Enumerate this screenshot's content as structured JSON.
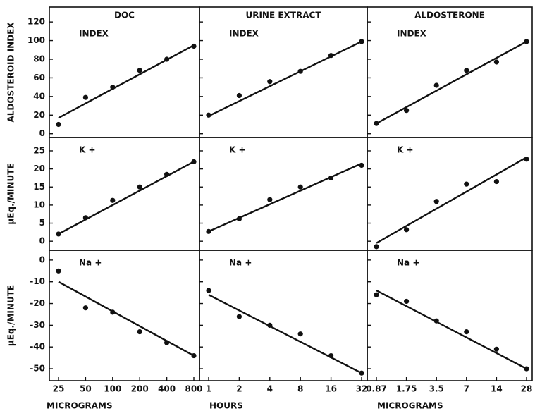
{
  "chart_data": [
    {
      "type": "scatter",
      "title": "DOC",
      "label": "INDEX",
      "y_label": "ALDOSTEROID INDEX",
      "ylim": [
        -4,
        136
      ],
      "yticks": [
        0,
        20,
        40,
        60,
        80,
        100,
        120
      ],
      "values": [
        10,
        39,
        50,
        68,
        80,
        94
      ],
      "fit_line": [
        17,
        95
      ],
      "color": "#111111"
    },
    {
      "type": "scatter",
      "title": "URINE EXTRACT",
      "label": "INDEX",
      "values": [
        20,
        41,
        56,
        67,
        84,
        99
      ],
      "fit_line": [
        19,
        99
      ],
      "color": "#111111"
    },
    {
      "type": "scatter",
      "title": "ALDOSTERONE",
      "label": "INDEX",
      "values": [
        11,
        25,
        52,
        68,
        77,
        99
      ],
      "fit_line": [
        11,
        99
      ],
      "color": "#111111"
    },
    {
      "type": "scatter",
      "label": "K +",
      "y_label": "µEq./MINUTE",
      "ylim": [
        -2.5,
        28.7
      ],
      "yticks": [
        0,
        5,
        10,
        15,
        20,
        25
      ],
      "values": [
        2,
        6.5,
        11.3,
        15,
        18.5,
        22
      ],
      "fit_line": [
        2,
        22
      ],
      "color": "#111111"
    },
    {
      "type": "scatter",
      "label": "K +",
      "values": [
        2.7,
        6.2,
        11.5,
        15,
        17.5,
        21
      ],
      "fit_line": [
        2.7,
        21.5
      ],
      "color": "#111111"
    },
    {
      "type": "scatter",
      "label": "K +",
      "values": [
        -1.5,
        3.2,
        11,
        15.8,
        16.5,
        22.7
      ],
      "fit_line": [
        -0.5,
        23.2
      ],
      "color": "#111111"
    },
    {
      "type": "scatter",
      "label": "Na +",
      "y_label": "µEq./MINUTE",
      "ylim": [
        -55.5,
        4.5
      ],
      "yticks": [
        0,
        -10,
        -20,
        -30,
        -40,
        -50
      ],
      "categories": [
        "25",
        "50",
        "100",
        "200",
        "400",
        "800"
      ],
      "x_label": "MICROGRAMS",
      "values": [
        -5,
        -22,
        -24,
        -33,
        -38,
        -44
      ],
      "fit_line": [
        -10,
        -44
      ],
      "color": "#111111"
    },
    {
      "type": "scatter",
      "label": "Na +",
      "categories": [
        "1",
        "2",
        "4",
        "8",
        "16",
        "32"
      ],
      "x_label": "HOURS",
      "values": [
        -14,
        -26,
        -30,
        -34,
        -44,
        -52
      ],
      "fit_line": [
        -16,
        -52
      ],
      "color": "#111111"
    },
    {
      "type": "scatter",
      "label": "Na +",
      "categories": [
        "0.87",
        "1.75",
        "3.5",
        "7",
        "14",
        "28"
      ],
      "x_label": "MICROGRAMS",
      "values": [
        -16,
        -19,
        -28,
        -33,
        -41,
        -50
      ],
      "fit_line": [
        -14,
        -50
      ],
      "color": "#111111"
    }
  ]
}
